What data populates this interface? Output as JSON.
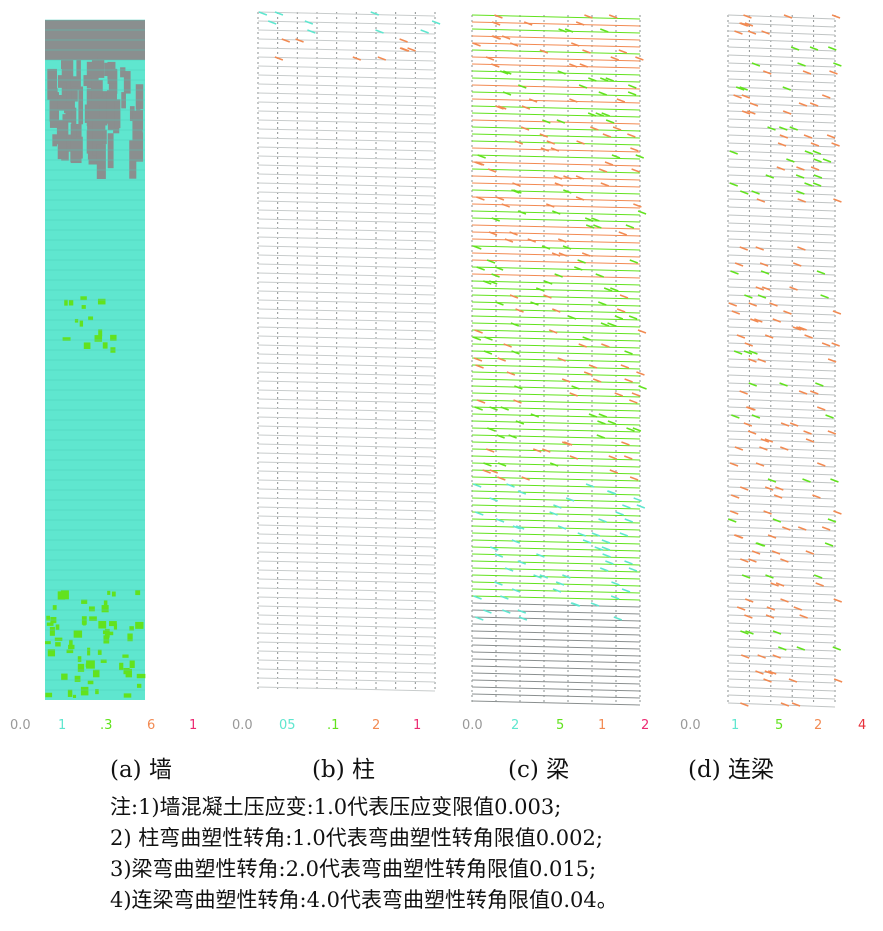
{
  "colors": {
    "gray": "#8a8f8f",
    "cyan": "#5fe6cf",
    "green": "#62e21e",
    "orange": "#f28a52",
    "pink": "#ec2a72",
    "red": "#e8303a"
  },
  "panels": [
    {
      "label": "(a) 墙",
      "legend": [
        "0.0",
        "1",
        ".3",
        "6",
        "1"
      ]
    },
    {
      "label": "(b) 柱",
      "legend": [
        "0.0",
        "05",
        ".1",
        "2",
        "1"
      ]
    },
    {
      "label": "(c) 梁",
      "legend": [
        "0.0",
        "2",
        "5",
        "1",
        "2"
      ]
    },
    {
      "label": "(d) 连梁",
      "legend": [
        "0.0",
        "1",
        "5",
        "2",
        "4"
      ]
    }
  ],
  "notes": [
    "注:1)墙混凝土压应变:1.0代表压应变限值0.003;",
    "2) 柱弯曲塑性转角:1.0代表弯曲塑性转角限值0.002;",
    "3)梁弯曲塑性转角:2.0代表弯曲塑性转角限值0.015;",
    "4)连梁弯曲塑性转角:4.0代表弯曲塑性转角限值0.04。"
  ]
}
